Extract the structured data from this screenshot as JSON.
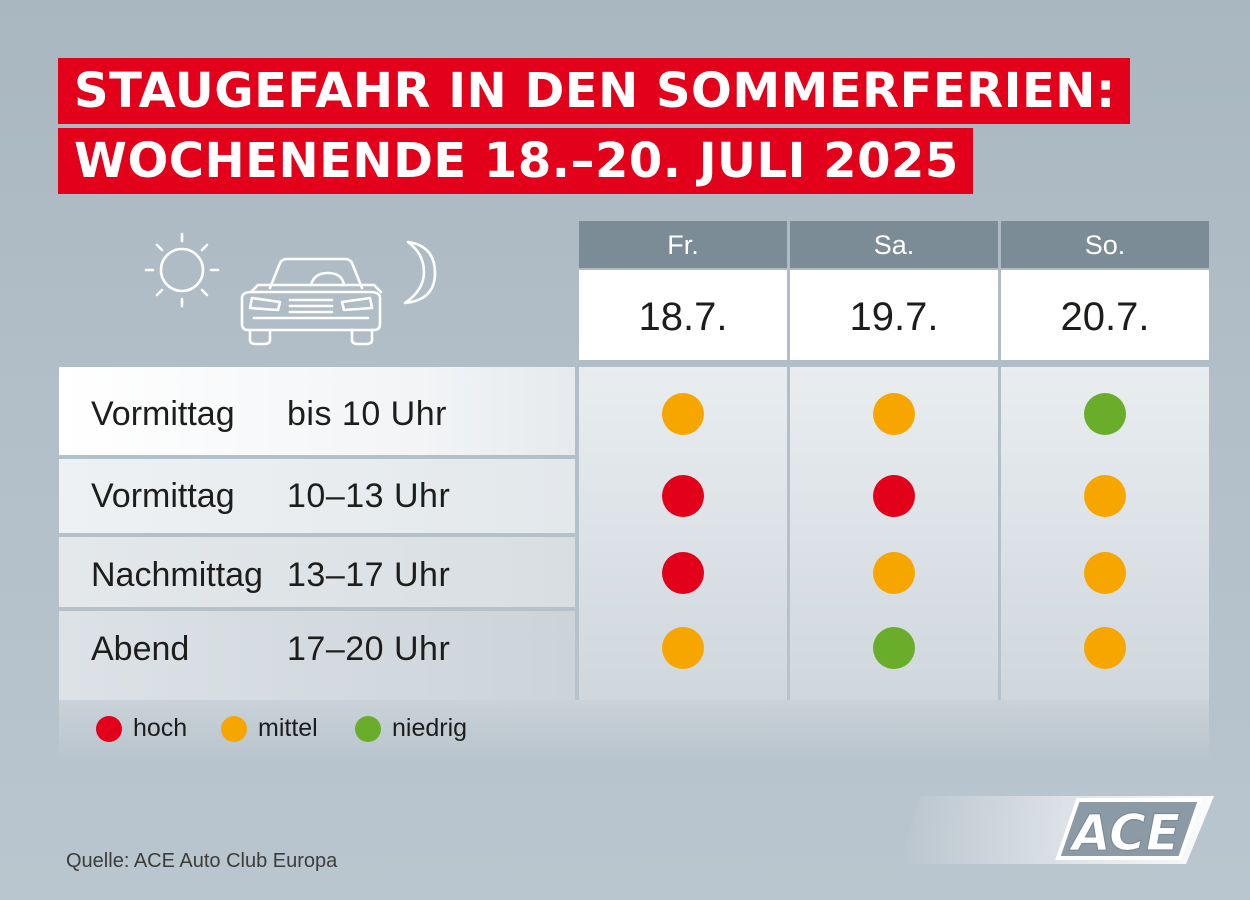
{
  "title": {
    "line1": "STAUGEFAHR IN DEN SOMMERFERIEN:",
    "line2": "WOCHENENDE 18.–20. JULI 2025"
  },
  "icons": [
    "sun-icon",
    "car-icon",
    "moon-icon"
  ],
  "columns": [
    {
      "day": "Fr.",
      "date": "18.7."
    },
    {
      "day": "Sa.",
      "date": "19.7."
    },
    {
      "day": "So.",
      "date": "20.7."
    }
  ],
  "rows": [
    {
      "period": "Vormittag",
      "time": "bis 10 Uhr",
      "levels": [
        "mittel",
        "mittel",
        "niedrig"
      ]
    },
    {
      "period": "Vormittag",
      "time": "10–13 Uhr",
      "levels": [
        "hoch",
        "hoch",
        "mittel"
      ]
    },
    {
      "period": "Nachmittag",
      "time": "13–17 Uhr",
      "levels": [
        "hoch",
        "mittel",
        "mittel"
      ]
    },
    {
      "period": "Abend",
      "time": "17–20 Uhr",
      "levels": [
        "mittel",
        "niedrig",
        "mittel"
      ]
    }
  ],
  "legend": [
    {
      "key": "hoch",
      "label": "hoch",
      "color": "#e2001a"
    },
    {
      "key": "mittel",
      "label": "mittel",
      "color": "#f7a600"
    },
    {
      "key": "niedrig",
      "label": "niedrig",
      "color": "#6aad2a"
    }
  ],
  "source": "Quelle: ACE Auto Club Europa",
  "logo": {
    "text": "ACE"
  },
  "colors": {
    "accent_red": "#e2001a",
    "header_gray": "#7c8c97"
  }
}
